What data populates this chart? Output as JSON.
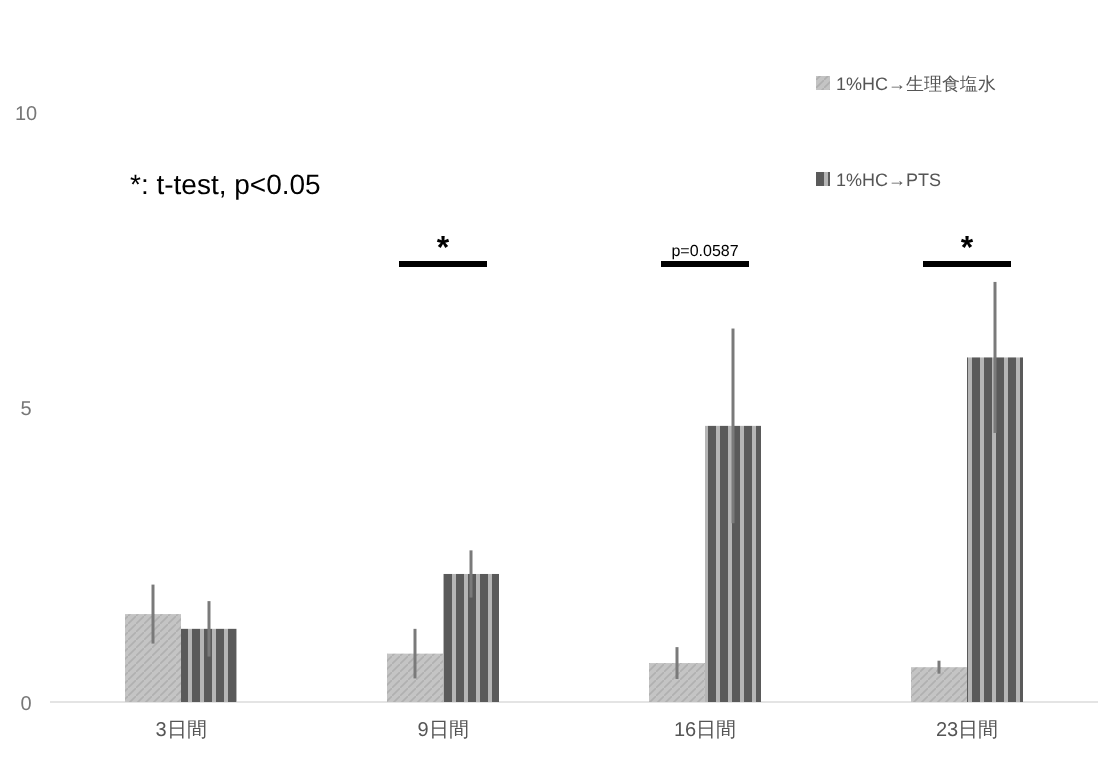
{
  "chart_data": {
    "type": "bar",
    "categories": [
      "3日間",
      "9日間",
      "16日間",
      "23日間"
    ],
    "series": [
      {
        "name": "1%HC→生理食塩水",
        "color": "#c4c4c4",
        "values": [
          1.49,
          0.82,
          0.66,
          0.59
        ],
        "errors": [
          0.5,
          0.42,
          0.27,
          0.11
        ]
      },
      {
        "name": "1%HC→PTS",
        "color": "#5a5a5a",
        "values": [
          1.24,
          2.17,
          4.68,
          5.84
        ],
        "errors": [
          0.47,
          0.4,
          1.65,
          1.28
        ]
      }
    ],
    "ylim": [
      0,
      10
    ],
    "yticks": [
      0,
      5,
      10
    ],
    "grid": false,
    "legend": "top right",
    "annotations": [
      "*: t-test, p<0.05",
      "*",
      "p=0.0587",
      "*"
    ]
  }
}
